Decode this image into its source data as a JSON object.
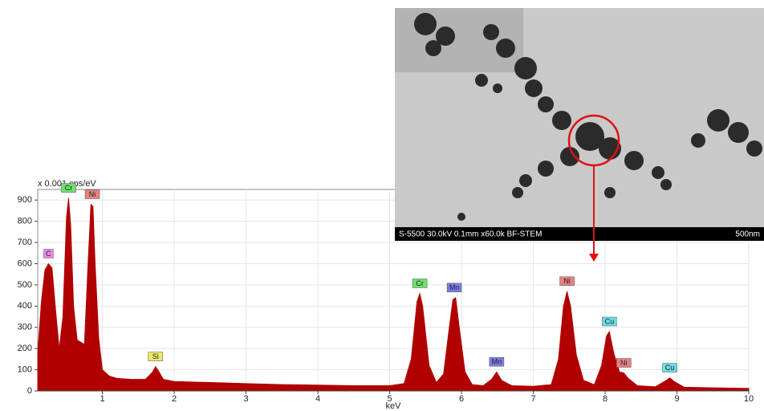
{
  "chart_data": {
    "type": "area",
    "y_unit_label": "x 0.001 cps/eV",
    "x_label": "keV",
    "x": [
      0.1,
      0.15,
      0.2,
      0.25,
      0.3,
      0.35,
      0.4,
      0.45,
      0.5,
      0.53,
      0.56,
      0.6,
      0.65,
      0.7,
      0.75,
      0.8,
      0.84,
      0.87,
      0.9,
      0.95,
      1.0,
      1.1,
      1.2,
      1.4,
      1.6,
      1.7,
      1.74,
      1.78,
      1.85,
      2.0,
      2.5,
      3.0,
      3.5,
      4.0,
      4.5,
      5.0,
      5.2,
      5.3,
      5.38,
      5.42,
      5.46,
      5.55,
      5.65,
      5.75,
      5.83,
      5.88,
      5.92,
      5.97,
      6.05,
      6.15,
      6.3,
      6.42,
      6.49,
      6.56,
      6.7,
      7.0,
      7.25,
      7.35,
      7.42,
      7.47,
      7.52,
      7.6,
      7.7,
      7.85,
      7.95,
      8.02,
      8.06,
      8.12,
      8.2,
      8.26,
      8.32,
      8.45,
      8.7,
      8.85,
      8.9,
      8.96,
      9.1,
      9.5,
      10.0
    ],
    "values": [
      180,
      420,
      570,
      600,
      580,
      380,
      200,
      350,
      820,
      910,
      780,
      400,
      240,
      230,
      220,
      600,
      880,
      870,
      600,
      250,
      100,
      70,
      60,
      55,
      55,
      90,
      115,
      95,
      55,
      45,
      40,
      35,
      30,
      28,
      25,
      25,
      35,
      150,
      420,
      460,
      400,
      120,
      40,
      80,
      300,
      430,
      440,
      300,
      90,
      30,
      25,
      55,
      90,
      50,
      25,
      22,
      30,
      150,
      400,
      470,
      400,
      170,
      50,
      30,
      120,
      260,
      280,
      180,
      90,
      85,
      60,
      25,
      20,
      50,
      62,
      45,
      18,
      15,
      12
    ],
    "color": "#b00000",
    "xlim": [
      0.1,
      10
    ],
    "xticks": [
      1,
      2,
      3,
      4,
      5,
      6,
      7,
      8,
      9,
      10
    ],
    "ylim": [
      0,
      950
    ],
    "yticks": [
      0,
      100,
      200,
      300,
      400,
      500,
      600,
      700,
      800,
      900
    ],
    "grid": true,
    "peak_labels": [
      {
        "label": "C",
        "x": 0.25,
        "color": "#e88ae8"
      },
      {
        "label": "Cr",
        "x": 0.53,
        "color": "#6ee06e"
      },
      {
        "label": "Ni",
        "x": 0.86,
        "color": "#e88080"
      },
      {
        "label": "Si",
        "x": 1.74,
        "color": "#ece66a"
      },
      {
        "label": "Cr",
        "x": 5.42,
        "color": "#6ee06e"
      },
      {
        "label": "Mn",
        "x": 5.9,
        "color": "#7c7ce8"
      },
      {
        "label": "Mn",
        "x": 6.49,
        "color": "#7c7ce8"
      },
      {
        "label": "Ni",
        "x": 7.47,
        "color": "#e88080"
      },
      {
        "label": "Cu",
        "x": 8.06,
        "color": "#6adce6"
      },
      {
        "label": "Ni",
        "x": 8.26,
        "color": "#e88080"
      },
      {
        "label": "Cu",
        "x": 8.9,
        "color": "#6adce6"
      }
    ]
  },
  "inset": {
    "caption": "S-5500 30.0kV 0.1mm x60.0k BF-STEM",
    "scale_bar": "500nm"
  }
}
